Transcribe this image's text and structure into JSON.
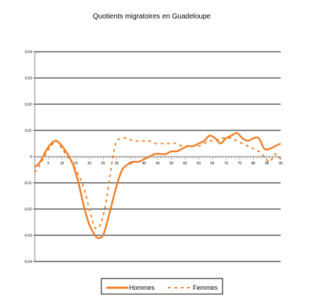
{
  "chart_data": {
    "type": "line",
    "title": "Quotients migratoires en Guadeloupe",
    "xlabel": "",
    "ylabel": "",
    "ylim": [
      -0.04,
      0.04
    ],
    "yticks": [
      0.04,
      0.03,
      0.02,
      0.01,
      0,
      -0.01,
      -0.02,
      -0.03,
      -0.04
    ],
    "ytick_labels": [
      "0,04",
      "0,03",
      "0,02",
      "0,01",
      "0",
      "-0,01",
      "-0,02",
      "-0,03",
      "-0,04"
    ],
    "xlim": [
      0,
      90
    ],
    "xticks": [
      5,
      10,
      15,
      20,
      25,
      30,
      35,
      40,
      45,
      50,
      55,
      60,
      65,
      70,
      75,
      80,
      85,
      90
    ],
    "xtick_labels": [
      "5",
      "10",
      "15",
      "20",
      "25",
      "30",
      "35",
      "40",
      "45",
      "50",
      "55",
      "60",
      "65",
      "70",
      "75",
      "80",
      "85",
      "90"
    ],
    "grid": true,
    "legend": "bottom",
    "colors": {
      "series": "#F07E26",
      "grid": "#000000",
      "axis": "#808080"
    },
    "series": [
      {
        "name": "Hommes",
        "style": "solid",
        "x": [
          0,
          2,
          4,
          6,
          8,
          10,
          12,
          14,
          16,
          18,
          20,
          22,
          23,
          24,
          25,
          26,
          28,
          30,
          32,
          34,
          36,
          38,
          40,
          42,
          44,
          46,
          48,
          50,
          52,
          54,
          56,
          58,
          60,
          62,
          64,
          66,
          68,
          70,
          72,
          74,
          76,
          78,
          80,
          82,
          84,
          86,
          88,
          90
        ],
        "y": [
          -0.004,
          -0.002,
          0.002,
          0.005,
          0.006,
          0.004,
          0.001,
          -0.003,
          -0.01,
          -0.019,
          -0.026,
          -0.03,
          -0.031,
          -0.031,
          -0.03,
          -0.027,
          -0.019,
          -0.011,
          -0.005,
          -0.003,
          -0.002,
          -0.002,
          -0.001,
          0.0,
          0.001,
          0.001,
          0.001,
          0.002,
          0.002,
          0.003,
          0.004,
          0.004,
          0.005,
          0.006,
          0.008,
          0.007,
          0.005,
          0.007,
          0.008,
          0.009,
          0.007,
          0.006,
          0.007,
          0.007,
          0.003,
          0.003,
          0.004,
          0.005
        ]
      },
      {
        "name": "Femmes",
        "style": "dashed",
        "x": [
          0,
          2,
          4,
          6,
          8,
          10,
          12,
          14,
          16,
          18,
          20,
          22,
          24,
          26,
          28,
          29,
          30,
          32,
          34,
          36,
          38,
          40,
          42,
          44,
          46,
          48,
          50,
          52,
          54,
          56,
          58,
          60,
          62,
          64,
          66,
          68,
          70,
          72,
          74,
          76,
          78,
          80,
          82,
          84,
          86,
          88,
          90
        ],
        "y": [
          -0.006,
          -0.003,
          0.001,
          0.004,
          0.006,
          0.003,
          0.0,
          -0.003,
          -0.007,
          -0.012,
          -0.02,
          -0.027,
          -0.026,
          -0.018,
          -0.004,
          0.002,
          0.006,
          0.007,
          0.007,
          0.006,
          0.006,
          0.006,
          0.006,
          0.005,
          0.005,
          0.005,
          0.005,
          0.005,
          0.004,
          0.004,
          0.004,
          0.004,
          0.005,
          0.006,
          0.006,
          0.007,
          0.007,
          0.007,
          0.006,
          0.005,
          0.004,
          0.003,
          0.002,
          0.0,
          -0.002,
          0.001,
          -0.001
        ]
      }
    ]
  }
}
